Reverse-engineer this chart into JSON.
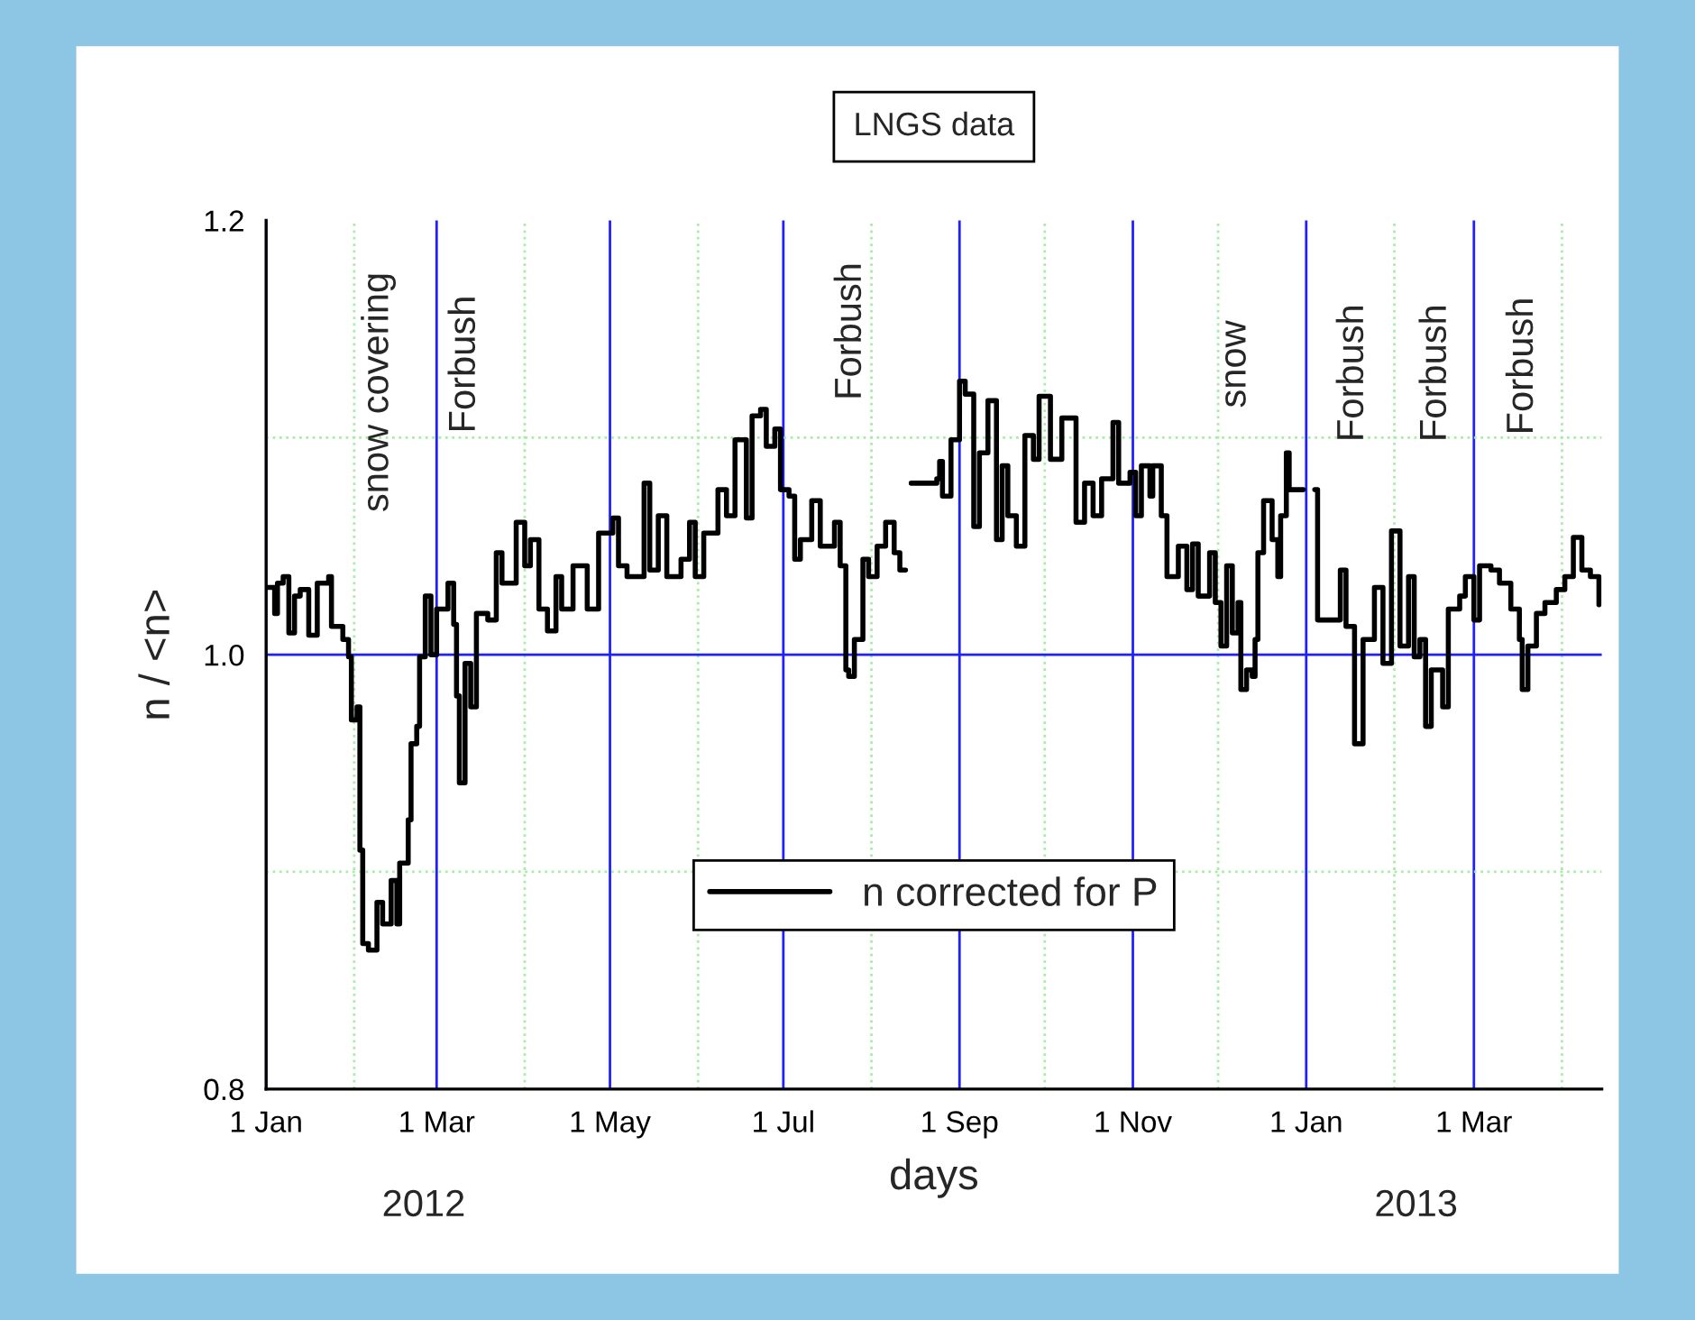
{
  "chart_data": {
    "type": "step",
    "title": "LNGS data",
    "xlabel": "days",
    "ylabel": "n / <n>",
    "xlim": [
      "2012-01-01",
      "2013-04-15"
    ],
    "ylim": [
      0.8,
      1.2
    ],
    "xticks": [
      {
        "value": "2012-01-01",
        "label": "1 Jan"
      },
      {
        "value": "2012-02-01",
        "label": null
      },
      {
        "value": "2012-03-01",
        "label": "1 Mar"
      },
      {
        "value": "2012-04-01",
        "label": null
      },
      {
        "value": "2012-05-01",
        "label": "1 May"
      },
      {
        "value": "2012-06-01",
        "label": null
      },
      {
        "value": "2012-07-01",
        "label": "1 Jul"
      },
      {
        "value": "2012-08-01",
        "label": null
      },
      {
        "value": "2012-09-01",
        "label": "1 Sep"
      },
      {
        "value": "2012-10-01",
        "label": null
      },
      {
        "value": "2012-11-01",
        "label": "1 Nov"
      },
      {
        "value": "2012-12-01",
        "label": null
      },
      {
        "value": "2013-01-01",
        "label": "1 Jan"
      },
      {
        "value": "2013-02-01",
        "label": null
      },
      {
        "value": "2013-03-01",
        "label": "1 Mar"
      },
      {
        "value": "2013-04-01",
        "label": null
      }
    ],
    "yticks": [
      0.8,
      {
        "value": 0.9,
        "label": null
      },
      {
        "value": 1.0,
        "label": "1.0"
      },
      {
        "value": 1.1,
        "label": null
      },
      1.2
    ],
    "grid": true,
    "legend": "bottom",
    "annotations": [
      "snow covering",
      "Forbush",
      "Forbush",
      "snow",
      "Forbush",
      "Forbush",
      "Forbush",
      "2012",
      "2013"
    ],
    "series": [
      {
        "name": "n corrected for P",
        "color": "#000000",
        "x": [
          "2012-01-01",
          "2012-01-04",
          "2012-01-05",
          "2012-01-07",
          "2012-01-09",
          "2012-01-11",
          "2012-01-13",
          "2012-01-16",
          "2012-01-19",
          "2012-01-23",
          "2012-01-24",
          "2012-01-28",
          "2012-01-30",
          "2012-01-31",
          "2012-02-02",
          "2012-02-03",
          "2012-02-04",
          "2012-02-06",
          "2012-02-09",
          "2012-02-11",
          "2012-02-14",
          "2012-02-16",
          "2012-02-17",
          "2012-02-20",
          "2012-02-21",
          "2012-02-23",
          "2012-02-24",
          "2012-02-26",
          "2012-02-28",
          "2012-03-01",
          "2012-03-05",
          "2012-03-07",
          "2012-03-08",
          "2012-03-09",
          "2012-03-11",
          "2012-03-13",
          "2012-03-15",
          "2012-03-19",
          "2012-03-22",
          "2012-03-24",
          "2012-03-29",
          "2012-04-01",
          "2012-04-03",
          "2012-04-06",
          "2012-04-09",
          "2012-04-12",
          "2012-04-14",
          "2012-04-18",
          "2012-04-23",
          "2012-04-27",
          "2012-05-02",
          "2012-05-04",
          "2012-05-07",
          "2012-05-13",
          "2012-05-15",
          "2012-05-18",
          "2012-05-21",
          "2012-05-26",
          "2012-05-29",
          "2012-05-31",
          "2012-06-03",
          "2012-06-08",
          "2012-06-11",
          "2012-06-14",
          "2012-06-18",
          "2012-06-20",
          "2012-06-23",
          "2012-06-25",
          "2012-06-28",
          "2012-06-30",
          "2012-07-03",
          "2012-07-05",
          "2012-07-07",
          "2012-07-11",
          "2012-07-14",
          "2012-07-17",
          "2012-07-19",
          "2012-07-21",
          "2012-07-23",
          "2012-07-24",
          "2012-07-26",
          "2012-07-29",
          "2012-07-31",
          "2012-08-03",
          "2012-08-06",
          "2012-08-09",
          "2012-08-11",
          "2012-08-13",
          "2012-08-15",
          "2012-08-24",
          "2012-08-25",
          "2012-08-26",
          "2012-08-29",
          "2012-09-01",
          "2012-09-03",
          "2012-09-06",
          "2012-09-08",
          "2012-09-11",
          "2012-09-14",
          "2012-09-16",
          "2012-09-18",
          "2012-09-21",
          "2012-09-24",
          "2012-09-27",
          "2012-09-29",
          "2012-10-03",
          "2012-10-07",
          "2012-10-12",
          "2012-10-15",
          "2012-10-18",
          "2012-10-21",
          "2012-10-25",
          "2012-10-27",
          "2012-10-31",
          "2012-11-02",
          "2012-11-04",
          "2012-11-07",
          "2012-11-08",
          "2012-11-11",
          "2012-11-13",
          "2012-11-17",
          "2012-11-20",
          "2012-11-22",
          "2012-11-24",
          "2012-11-28",
          "2012-11-30",
          "2012-12-02",
          "2012-12-04",
          "2012-12-06",
          "2012-12-08",
          "2012-12-09",
          "2012-12-11",
          "2012-12-13",
          "2012-12-14",
          "2012-12-15",
          "2012-12-17",
          "2012-12-20",
          "2012-12-22",
          "2012-12-23",
          "2012-12-25",
          "2012-12-26",
          "2012-12-30",
          "2012-12-31",
          "2013-01-04",
          "2013-01-05",
          "2013-01-10",
          "2013-01-13",
          "2013-01-15",
          "2013-01-18",
          "2013-01-21",
          "2013-01-25",
          "2013-01-28",
          "2013-01-31",
          "2013-02-03",
          "2013-02-06",
          "2013-02-08",
          "2013-02-10",
          "2013-02-12",
          "2013-02-14",
          "2013-02-18",
          "2013-02-20",
          "2013-02-24",
          "2013-02-26",
          "2013-03-01",
          "2013-03-03",
          "2013-03-07",
          "2013-03-10",
          "2013-03-14",
          "2013-03-17",
          "2013-03-18",
          "2013-03-20",
          "2013-03-23",
          "2013-03-26",
          "2013-03-30",
          "2013-04-02",
          "2013-04-05",
          "2013-04-08",
          "2013-04-11",
          "2013-04-14"
        ],
        "values": [
          1.031,
          1.019,
          1.033,
          1.036,
          1.01,
          1.027,
          1.03,
          1.009,
          1.033,
          1.036,
          1.013,
          1.007,
          0.999,
          0.97,
          0.976,
          0.91,
          0.867,
          0.864,
          0.886,
          0.876,
          0.896,
          0.876,
          0.904,
          0.924,
          0.959,
          0.967,
          0.999,
          1.027,
          1.0,
          1.021,
          1.033,
          1.014,
          0.981,
          0.941,
          0.996,
          0.976,
          1.019,
          1.016,
          1.047,
          1.033,
          1.061,
          1.041,
          1.053,
          1.021,
          1.011,
          1.036,
          1.021,
          1.041,
          1.021,
          1.056,
          1.063,
          1.041,
          1.036,
          1.079,
          1.039,
          1.064,
          1.036,
          1.044,
          1.061,
          1.036,
          1.056,
          1.076,
          1.064,
          1.099,
          1.063,
          1.11,
          1.113,
          1.096,
          1.104,
          1.076,
          1.073,
          1.044,
          1.053,
          1.071,
          1.05,
          1.05,
          1.061,
          1.041,
          0.993,
          0.99,
          1.007,
          1.044,
          1.036,
          1.05,
          1.061,
          1.047,
          1.039,
          null,
          1.079,
          1.081,
          1.089,
          1.073,
          1.099,
          1.126,
          1.12,
          1.059,
          1.093,
          1.117,
          1.053,
          1.087,
          1.064,
          1.05,
          1.101,
          1.09,
          1.119,
          1.09,
          1.109,
          1.061,
          1.079,
          1.064,
          1.081,
          1.107,
          1.079,
          1.084,
          1.064,
          1.087,
          1.073,
          1.087,
          1.064,
          1.036,
          1.05,
          1.03,
          1.051,
          1.027,
          1.047,
          1.024,
          1.004,
          1.041,
          1.01,
          1.024,
          0.984,
          0.993,
          0.99,
          1.007,
          1.047,
          1.071,
          1.053,
          1.036,
          1.064,
          1.093,
          1.076,
          1.076,
          null,
          1.076,
          1.016,
          1.016,
          1.039,
          1.013,
          0.959,
          1.007,
          1.031,
          0.996,
          1.057,
          1.004,
          1.036,
          0.999,
          1.007,
          0.967,
          0.993,
          0.976,
          1.021,
          1.027,
          1.036,
          1.016,
          1.041,
          1.039,
          1.033,
          1.021,
          1.007,
          0.984,
          1.004,
          1.019,
          1.024,
          1.03,
          1.036,
          1.054,
          1.039,
          1.036,
          1.023
        ]
      }
    ]
  }
}
